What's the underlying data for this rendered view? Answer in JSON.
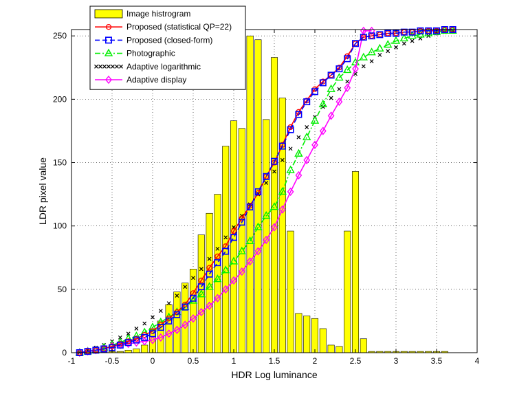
{
  "chart_data": {
    "type": "line",
    "xlabel": "HDR Log luminance",
    "ylabel": "LDR pixel value",
    "xlim": [
      -1,
      4
    ],
    "ylim": [
      0,
      255
    ],
    "xticks": [
      "-1",
      "-0.5",
      "0",
      "0.5",
      "1",
      "1.5",
      "2",
      "2.5",
      "3",
      "3.5",
      "4"
    ],
    "yticks": [
      "0",
      "50",
      "100",
      "150",
      "200",
      "250"
    ],
    "grid": true,
    "legend_position": "top-left",
    "histogram": {
      "name": "Image histrogram",
      "color": "#ffff00",
      "bin_width": 0.1,
      "x": [
        -0.9,
        -0.8,
        -0.7,
        -0.6,
        -0.5,
        -0.4,
        -0.3,
        -0.2,
        -0.1,
        0,
        0.1,
        0.2,
        0.3,
        0.4,
        0.5,
        0.6,
        0.7,
        0.8,
        0.9,
        1.0,
        1.1,
        1.2,
        1.3,
        1.4,
        1.5,
        1.6,
        1.7,
        1.8,
        1.9,
        2.0,
        2.1,
        2.2,
        2.3,
        2.4,
        2.5,
        2.6,
        2.7,
        2.8,
        2.9,
        3.0,
        3.1,
        3.2,
        3.3,
        3.4,
        3.5,
        3.6
      ],
      "values": [
        1,
        1,
        1,
        1,
        1,
        1,
        2,
        3,
        6,
        19,
        25,
        38,
        48,
        55,
        66,
        93,
        110,
        125,
        163,
        183,
        177,
        250,
        247,
        184,
        233,
        201,
        96,
        31,
        29,
        27,
        19,
        6,
        5,
        96,
        143,
        11,
        1,
        1,
        1,
        1,
        1,
        1,
        1,
        1,
        1,
        1
      ]
    },
    "series": [
      {
        "name": "Proposed (statistical QP=22)",
        "color": "#ff0000",
        "marker": "circle",
        "dash": "solid",
        "x": [
          -0.9,
          -0.8,
          -0.7,
          -0.6,
          -0.5,
          -0.4,
          -0.3,
          -0.2,
          -0.1,
          0,
          0.1,
          0.2,
          0.3,
          0.4,
          0.5,
          0.6,
          0.7,
          0.8,
          0.9,
          1.0,
          1.1,
          1.2,
          1.3,
          1.4,
          1.5,
          1.6,
          1.7,
          1.8,
          1.9,
          2.0,
          2.1,
          2.2,
          2.3,
          2.4,
          2.5,
          2.6,
          2.7,
          2.8,
          2.9,
          3.0,
          3.1,
          3.2,
          3.3,
          3.4,
          3.5,
          3.6,
          3.7
        ],
        "y": [
          0,
          1,
          2,
          3,
          5,
          7,
          9,
          11,
          14,
          17,
          22,
          27,
          32,
          38,
          47,
          57,
          67,
          76,
          84,
          96,
          106,
          116,
          126,
          139,
          150,
          164,
          178,
          190,
          199,
          208,
          214,
          219,
          225,
          234,
          244,
          249,
          250,
          251,
          252,
          252,
          253,
          253,
          254,
          254,
          254,
          255,
          255
        ]
      },
      {
        "name": "Proposed (closed-form)",
        "color": "#0000ff",
        "marker": "square",
        "dash": "dashed",
        "x": [
          -0.9,
          -0.8,
          -0.7,
          -0.6,
          -0.5,
          -0.4,
          -0.3,
          -0.2,
          -0.1,
          0,
          0.1,
          0.2,
          0.3,
          0.4,
          0.5,
          0.6,
          0.7,
          0.8,
          0.9,
          1.0,
          1.1,
          1.2,
          1.3,
          1.4,
          1.5,
          1.6,
          1.7,
          1.8,
          1.9,
          2.0,
          2.1,
          2.2,
          2.3,
          2.4,
          2.5,
          2.6,
          2.7,
          2.8,
          2.9,
          3.0,
          3.1,
          3.2,
          3.3,
          3.4,
          3.5,
          3.6,
          3.7
        ],
        "y": [
          0,
          1,
          2,
          3,
          4,
          6,
          8,
          10,
          12,
          15,
          20,
          25,
          30,
          36,
          43,
          52,
          62,
          71,
          80,
          91,
          103,
          115,
          127,
          139,
          151,
          163,
          176,
          188,
          198,
          206,
          213,
          219,
          224,
          232,
          244,
          249,
          250,
          251,
          252,
          252,
          253,
          253,
          254,
          254,
          254,
          255,
          255
        ]
      },
      {
        "name": "Photographic",
        "color": "#00ee00",
        "marker": "triangle",
        "dash": "dashdot",
        "x": [
          -0.9,
          -0.8,
          -0.7,
          -0.6,
          -0.5,
          -0.4,
          -0.3,
          -0.2,
          -0.1,
          0,
          0.1,
          0.2,
          0.3,
          0.4,
          0.5,
          0.6,
          0.7,
          0.8,
          0.9,
          1.0,
          1.1,
          1.2,
          1.3,
          1.4,
          1.5,
          1.6,
          1.7,
          1.8,
          1.9,
          2.0,
          2.1,
          2.2,
          2.3,
          2.4,
          2.5,
          2.6,
          2.7,
          2.8,
          2.9,
          3.0,
          3.1,
          3.2,
          3.3,
          3.4,
          3.5,
          3.6,
          3.7
        ],
        "y": [
          0,
          1,
          2,
          4,
          6,
          8,
          11,
          13,
          16,
          20,
          24,
          28,
          32,
          36,
          41,
          46,
          52,
          58,
          65,
          72,
          80,
          88,
          99,
          108,
          115,
          127,
          144,
          157,
          170,
          183,
          196,
          208,
          217,
          223,
          229,
          233,
          237,
          240,
          243,
          246,
          248,
          250,
          251,
          252,
          253,
          254,
          254
        ]
      },
      {
        "name": "Adaptive logarithmic",
        "color": "#000000",
        "marker": "x",
        "dash": "dotted",
        "x": [
          -0.9,
          -0.8,
          -0.7,
          -0.6,
          -0.5,
          -0.4,
          -0.3,
          -0.2,
          -0.1,
          0,
          0.1,
          0.2,
          0.3,
          0.4,
          0.5,
          0.6,
          0.7,
          0.8,
          0.9,
          1.0,
          1.1,
          1.2,
          1.3,
          1.4,
          1.5,
          1.6,
          1.7,
          1.8,
          1.9,
          2.0,
          2.1,
          2.2,
          2.3,
          2.4,
          2.5,
          2.6,
          2.7,
          2.8,
          2.9,
          3.0,
          3.1,
          3.2,
          3.3,
          3.4,
          3.5,
          3.6,
          3.7
        ],
        "y": [
          0,
          2,
          4,
          6,
          9,
          12,
          15,
          19,
          23,
          28,
          33,
          39,
          45,
          52,
          59,
          66,
          74,
          82,
          91,
          99,
          108,
          117,
          125,
          134,
          143,
          152,
          161,
          170,
          178,
          186,
          194,
          201,
          208,
          214,
          220,
          226,
          230,
          235,
          238,
          241,
          244,
          246,
          248,
          250,
          252,
          253,
          254
        ]
      },
      {
        "name": "Adaptive display",
        "color": "#ff00ff",
        "marker": "diamond",
        "dash": "solid",
        "x": [
          -0.9,
          -0.8,
          -0.7,
          -0.6,
          -0.5,
          -0.4,
          -0.3,
          -0.2,
          -0.1,
          0,
          0.1,
          0.2,
          0.3,
          0.4,
          0.5,
          0.6,
          0.7,
          0.8,
          0.9,
          1.0,
          1.1,
          1.2,
          1.3,
          1.4,
          1.5,
          1.6,
          1.7,
          1.8,
          1.9,
          2.0,
          2.1,
          2.2,
          2.3,
          2.4,
          2.5,
          2.6,
          2.7
        ],
        "y": [
          0,
          1,
          2,
          3,
          5,
          6,
          7,
          8,
          9,
          10,
          12,
          15,
          18,
          22,
          27,
          32,
          37,
          43,
          50,
          57,
          64,
          72,
          80,
          89,
          99,
          113,
          127,
          140,
          152,
          164,
          175,
          187,
          198,
          209,
          224,
          254,
          254
        ]
      }
    ]
  }
}
